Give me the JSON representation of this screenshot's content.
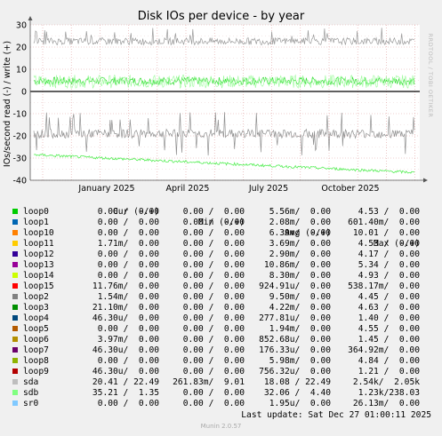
{
  "chart_data": {
    "type": "line",
    "title": "Disk IOs per device - by year",
    "ylabel": "IOs/second read (-) / write (+)",
    "ylim": [
      -40,
      30
    ],
    "yticks": [
      30,
      20,
      10,
      0,
      -10,
      -20,
      -30,
      -40
    ],
    "xticks": [
      "January 2025",
      "April 2025",
      "July 2025",
      "October 2025"
    ],
    "grid": true,
    "series": [
      {
        "name": "sda",
        "color": "#b7b7b7",
        "write_level": 22.49,
        "read_level": -20.41
      },
      {
        "name": "sdb",
        "color": "#98fb98",
        "write_level": 4.4,
        "read_level_start": -28.5,
        "read_level_end": -36.5
      },
      {
        "name": "loop0",
        "color": "#00cc00"
      }
    ]
  },
  "watermark": "RRDTOOL / TOBI OETIKER",
  "legend": {
    "headers": {
      "cur": "Cur (-/+)",
      "min": "Min (-/+)",
      "avg": "Avg (-/+)",
      "max": "Max (-/+)"
    },
    "rows": [
      {
        "name": "loop0",
        "color": "#00cc00",
        "cur": "0.00 /  0.00",
        "min": "0.00 /  0.00",
        "avg": "5.56m/  0.00",
        "max": "4.53 /  0.00"
      },
      {
        "name": "loop1",
        "color": "#0066b3",
        "cur": "0.00 /  0.00",
        "min": "0.00 /  0.00",
        "avg": "2.08m/  0.00",
        "max": "601.40m/  0.00"
      },
      {
        "name": "loop10",
        "color": "#ff8000",
        "cur": "0.00 /  0.00",
        "min": "0.00 /  0.00",
        "avg": "6.39m/  0.00",
        "max": "10.01 /  0.00"
      },
      {
        "name": "loop11",
        "color": "#ffcc00",
        "cur": "1.71m/  0.00",
        "min": "0.00 /  0.00",
        "avg": "3.69m/  0.00",
        "max": "4.53 /  0.00"
      },
      {
        "name": "loop12",
        "color": "#330099",
        "cur": "0.00 /  0.00",
        "min": "0.00 /  0.00",
        "avg": "2.90m/  0.00",
        "max": "4.17 /  0.00"
      },
      {
        "name": "loop13",
        "color": "#990099",
        "cur": "0.00 /  0.00",
        "min": "0.00 /  0.00",
        "avg": "10.86m/  0.00",
        "max": "5.34 /  0.00"
      },
      {
        "name": "loop14",
        "color": "#ccff00",
        "cur": "0.00 /  0.00",
        "min": "0.00 /  0.00",
        "avg": "8.30m/  0.00",
        "max": "4.93 /  0.00"
      },
      {
        "name": "loop15",
        "color": "#ff0000",
        "cur": "11.76m/  0.00",
        "min": "0.00 /  0.00",
        "avg": "924.91u/  0.00",
        "max": "538.17m/  0.00"
      },
      {
        "name": "loop2",
        "color": "#808080",
        "cur": "1.54m/  0.00",
        "min": "0.00 /  0.00",
        "avg": "9.50m/  0.00",
        "max": "4.45 /  0.00"
      },
      {
        "name": "loop3",
        "color": "#008f00",
        "cur": "21.10m/  0.00",
        "min": "0.00 /  0.00",
        "avg": "4.22m/  0.00",
        "max": "4.63 /  0.00"
      },
      {
        "name": "loop4",
        "color": "#00487d",
        "cur": "46.30u/  0.00",
        "min": "0.00 /  0.00",
        "avg": "277.81u/  0.00",
        "max": "1.40 /  0.00"
      },
      {
        "name": "loop5",
        "color": "#b35a00",
        "cur": "0.00 /  0.00",
        "min": "0.00 /  0.00",
        "avg": "1.94m/  0.00",
        "max": "4.55 /  0.00"
      },
      {
        "name": "loop6",
        "color": "#b38f00",
        "cur": "3.97m/  0.00",
        "min": "0.00 /  0.00",
        "avg": "852.68u/  0.00",
        "max": "1.45 /  0.00"
      },
      {
        "name": "loop7",
        "color": "#6b006b",
        "cur": "46.30u/  0.00",
        "min": "0.00 /  0.00",
        "avg": "176.33u/  0.00",
        "max": "364.92m/  0.00"
      },
      {
        "name": "loop8",
        "color": "#8fb300",
        "cur": "0.00 /  0.00",
        "min": "0.00 /  0.00",
        "avg": "5.98m/  0.00",
        "max": "4.84 /  0.00"
      },
      {
        "name": "loop9",
        "color": "#b30000",
        "cur": "46.30u/  0.00",
        "min": "0.00 /  0.00",
        "avg": "756.32u/  0.00",
        "max": "1.21 /  0.00"
      },
      {
        "name": "sda",
        "color": "#bebebe",
        "cur": "20.41 / 22.49",
        "min": "261.83m/  9.01",
        "avg": "18.08 / 22.49",
        "max": "2.54k/  2.05k"
      },
      {
        "name": "sdb",
        "color": "#80ff80",
        "cur": "35.21 /  1.35",
        "min": "0.00 /  0.00",
        "avg": "32.06 /  4.40",
        "max": "1.23k/238.03"
      },
      {
        "name": "sr0",
        "color": "#80c9ff",
        "cur": "0.00 /  0.00",
        "min": "0.00 /  0.00",
        "avg": "1.95u/  0.00",
        "max": "26.13m/  0.00"
      }
    ]
  },
  "last_update": "Last update: Sat Dec 27 01:00:11 2025",
  "footer": "Munin 2.0.57"
}
